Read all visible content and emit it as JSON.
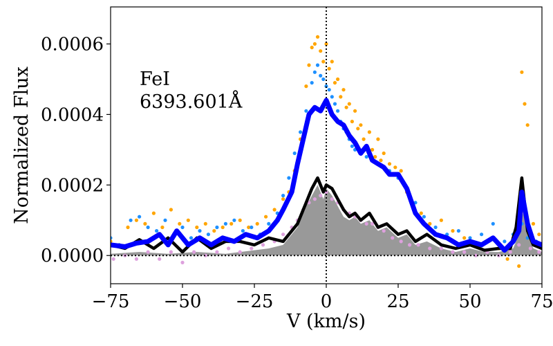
{
  "chart_data": {
    "type": "line",
    "xlabel": "V (km/s)",
    "ylabel": "Normalized Flux",
    "xlim": [
      -75,
      75
    ],
    "ylim": [
      -8e-05,
      0.000705
    ],
    "xticks": [
      -75,
      -50,
      -25,
      0,
      25,
      50,
      75
    ],
    "xtick_labels": [
      "−75",
      "−50",
      "−25",
      "0",
      "25",
      "50",
      "75"
    ],
    "yticks": [
      0,
      0.0002,
      0.0004,
      0.0006
    ],
    "ytick_labels": [
      "0.0000",
      "0.0002",
      "0.0004",
      "0.0006"
    ],
    "annotation_line1": "FeI",
    "annotation_line2": "6393.601Å",
    "reference_lines": [
      {
        "orientation": "vertical",
        "x": 0,
        "style": "dotted"
      },
      {
        "orientation": "horizontal",
        "y": 0,
        "style": "dotted"
      }
    ],
    "series": [
      {
        "name": "blue model",
        "kind": "line",
        "color": "#0000ff",
        "x": [
          -75,
          -70,
          -66,
          -62,
          -58,
          -55,
          -52,
          -48,
          -44,
          -40,
          -36,
          -32,
          -28,
          -24,
          -20,
          -17,
          -15,
          -12,
          -10,
          -8,
          -6,
          -4,
          -2,
          0,
          2,
          4,
          6,
          8,
          10,
          12,
          14,
          16,
          18,
          20,
          22,
          25,
          28,
          31,
          34,
          38,
          42,
          46,
          50,
          54,
          58,
          62,
          65,
          67,
          68,
          70,
          72,
          75
        ],
        "y": [
          3e-05,
          2.5e-05,
          3.5e-05,
          4e-05,
          6e-05,
          3e-05,
          7e-05,
          3e-05,
          5e-05,
          3e-05,
          5e-05,
          4e-05,
          6e-05,
          5e-05,
          7e-05,
          0.0001,
          0.00013,
          0.00018,
          0.00026,
          0.00033,
          0.0004,
          0.00042,
          0.00041,
          0.00044,
          0.0004,
          0.00038,
          0.00037,
          0.00034,
          0.00032,
          0.00029,
          0.00031,
          0.00027,
          0.00026,
          0.00025,
          0.00023,
          0.00023,
          0.00019,
          0.00012,
          9e-05,
          6e-05,
          5e-05,
          3e-05,
          4e-05,
          3e-05,
          5e-05,
          1.5e-05,
          4e-05,
          7e-05,
          0.00018,
          9e-05,
          4e-05,
          3e-05
        ]
      },
      {
        "name": "black model",
        "kind": "line",
        "color": "#000000",
        "x": [
          -75,
          -70,
          -65,
          -60,
          -55,
          -50,
          -45,
          -40,
          -35,
          -30,
          -25,
          -20,
          -15,
          -10,
          -7,
          -5,
          -3,
          -1,
          0,
          2,
          4,
          6,
          8,
          10,
          12,
          15,
          18,
          21,
          25,
          28,
          31,
          35,
          40,
          45,
          50,
          55,
          60,
          64,
          66,
          68,
          70,
          72,
          75
        ],
        "y": [
          3e-05,
          2e-05,
          4.5e-05,
          2e-05,
          5e-05,
          1e-05,
          5e-05,
          2e-05,
          4e-05,
          4e-05,
          3e-05,
          5e-05,
          4e-05,
          9e-05,
          0.00015,
          0.00019,
          0.00022,
          0.00018,
          0.0002,
          0.00019,
          0.00016,
          0.00013,
          0.00011,
          0.00012,
          0.0001,
          0.00012,
          8e-05,
          9e-05,
          6e-05,
          7e-05,
          4e-05,
          6e-05,
          3e-05,
          2e-05,
          3e-05,
          1.5e-05,
          2e-05,
          2e-05,
          8e-05,
          0.00022,
          7e-05,
          3e-05,
          2e-05
        ]
      },
      {
        "name": "gray filled",
        "kind": "area",
        "color": "#999999",
        "x": [
          -75,
          -65,
          -55,
          -45,
          -35,
          -25,
          -20,
          -15,
          -10,
          -7,
          -5,
          -3,
          -1,
          0,
          2,
          4,
          6,
          8,
          10,
          12,
          15,
          18,
          21,
          25,
          28,
          31,
          35,
          40,
          45,
          50,
          55,
          60,
          65,
          67,
          68,
          70,
          72,
          75
        ],
        "y": [
          5e-06,
          1e-05,
          5e-06,
          1e-05,
          5e-06,
          1.5e-05,
          2e-05,
          3e-05,
          8e-05,
          0.00014,
          0.00017,
          0.0002,
          0.00016,
          0.00019,
          0.00017,
          0.00014,
          0.00011,
          0.0001,
          0.00011,
          9e-05,
          0.0001,
          7e-05,
          8e-05,
          5e-05,
          6e-05,
          3e-05,
          4e-05,
          2e-05,
          1e-05,
          2e-05,
          1e-05,
          1e-05,
          2e-05,
          6e-05,
          0.0002,
          6e-05,
          2e-05,
          1e-05
        ]
      },
      {
        "name": "orange points",
        "kind": "scatter",
        "color": "#ffa500",
        "x": [
          -75,
          -72,
          -69,
          -66,
          -63,
          -60,
          -57,
          -54,
          -51,
          -48,
          -45,
          -42,
          -39,
          -36,
          -33,
          -30,
          -27,
          -24,
          -21,
          -18,
          -15,
          -13,
          -11,
          -9,
          -7,
          -6,
          -5,
          -4,
          -3,
          -2,
          -1,
          0,
          1,
          2,
          3,
          4,
          5,
          6,
          7,
          8,
          9,
          10,
          11,
          12,
          13,
          14,
          15,
          16,
          17,
          18,
          19,
          20,
          22,
          24,
          26,
          28,
          30,
          33,
          36,
          40,
          44,
          48,
          52,
          56,
          60,
          63,
          65,
          67,
          68,
          69,
          70,
          72,
          74
        ],
        "y": [
          4e-05,
          3e-05,
          8e-05,
          0.0001,
          9e-05,
          0.00012,
          8e-05,
          0.00013,
          9e-05,
          0.0001,
          8e-05,
          9e-05,
          7e-05,
          8e-05,
          9e-05,
          0.0001,
          8e-05,
          9e-05,
          0.00011,
          0.00013,
          0.00016,
          0.00018,
          0.00024,
          0.00033,
          0.00048,
          0.00054,
          0.00059,
          0.0006,
          0.00062,
          0.00058,
          0.00055,
          0.0006,
          0.00053,
          0.00055,
          0.00049,
          0.0005,
          0.00045,
          0.00047,
          0.00042,
          0.00043,
          0.00038,
          0.00041,
          0.00036,
          0.00037,
          0.00033,
          0.00031,
          0.00035,
          0.0003,
          0.00028,
          0.00033,
          0.00027,
          0.00029,
          0.00026,
          0.00025,
          0.00024,
          0.00018,
          0.00015,
          0.00012,
          9e-05,
          0.0001,
          7e-05,
          5e-05,
          3e-05,
          4e-05,
          2e-05,
          -1e-05,
          5e-05,
          -3e-05,
          0.00052,
          0.00043,
          0.00037,
          9e-05,
          6e-05
        ]
      },
      {
        "name": "dodgerblue points",
        "kind": "scatter",
        "color": "#1e90ff",
        "x": [
          -75,
          -72,
          -68,
          -65,
          -62,
          -59,
          -56,
          -53,
          -50,
          -47,
          -44,
          -41,
          -38,
          -35,
          -32,
          -29,
          -26,
          -23,
          -20,
          -17,
          -15,
          -13,
          -11,
          -9,
          -7,
          -5,
          -4,
          -3,
          -2,
          -1,
          0,
          1,
          2,
          3,
          4,
          5,
          6,
          7,
          8,
          9,
          10,
          12,
          14,
          16,
          18,
          20,
          22,
          25,
          28,
          31,
          34,
          38,
          42,
          46,
          50,
          54,
          58,
          62,
          65,
          68,
          70,
          73
        ],
        "y": [
          5e-05,
          3e-05,
          0.0001,
          0.00011,
          8e-05,
          7e-05,
          0.0001,
          6e-05,
          8e-05,
          5e-05,
          7e-05,
          6e-05,
          8e-05,
          9e-05,
          0.0001,
          7e-05,
          8e-05,
          6e-05,
          9e-05,
          0.00012,
          0.00017,
          0.00022,
          0.00029,
          0.00035,
          0.00041,
          0.00049,
          0.00052,
          0.00054,
          0.00051,
          0.0005,
          0.00048,
          0.00047,
          0.00045,
          0.00043,
          0.00041,
          0.00038,
          0.00036,
          0.00035,
          0.00033,
          0.00031,
          0.0003,
          0.00029,
          0.00028,
          0.00027,
          0.00026,
          0.00025,
          0.00024,
          0.00022,
          0.00019,
          0.00015,
          0.00011,
          8e-05,
          6e-05,
          7e-05,
          5e-05,
          6e-05,
          9e-05,
          4e-05,
          6e-05,
          9e-05,
          5e-05,
          4e-05
        ]
      },
      {
        "name": "plum points",
        "kind": "scatter",
        "color": "#dda0dd",
        "x": [
          -74,
          -70,
          -66,
          -62,
          -58,
          -54,
          -50,
          -46,
          -42,
          -38,
          -34,
          -30,
          -26,
          -22,
          -18,
          -15,
          -12,
          -10,
          -8,
          -6,
          -4,
          -2,
          0,
          2,
          4,
          6,
          8,
          10,
          12,
          14,
          16,
          18,
          20,
          23,
          26,
          29,
          32,
          36,
          40,
          44,
          48,
          52,
          56,
          60,
          64,
          67,
          69,
          71,
          74
        ],
        "y": [
          -1e-05,
          0.0,
          -1e-05,
          1e-05,
          -1e-05,
          1e-05,
          -2e-05,
          1e-05,
          0.0,
          1e-05,
          2e-05,
          1e-05,
          2e-05,
          3e-05,
          4e-05,
          6e-05,
          8e-05,
          0.0001,
          0.00013,
          0.00015,
          0.00016,
          0.00017,
          0.00018,
          0.00016,
          0.00015,
          0.00013,
          0.00012,
          0.00011,
          0.0001,
          9e-05,
          9e-05,
          8e-05,
          7e-05,
          5e-05,
          4e-05,
          3e-05,
          3e-05,
          2e-05,
          2e-05,
          1e-05,
          1e-05,
          0.0,
          1e-05,
          0.0,
          1e-05,
          3e-05,
          0.00012,
          2e-05,
          1e-05
        ]
      }
    ]
  }
}
